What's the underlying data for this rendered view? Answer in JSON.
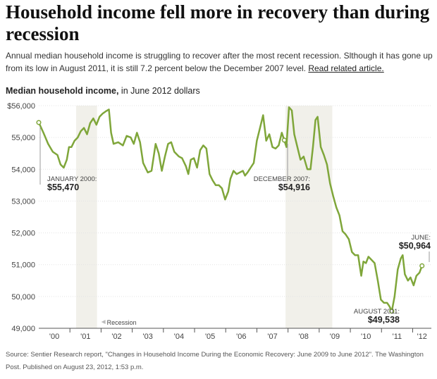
{
  "header": {
    "title": "Household income fell more in recovery than during recession",
    "subtitle": "Annual median household income is struggling to recover after the most recent recession. Slthough it has gone up from its low in August 2011, it is still 7.2 percent below the December 2007 level.",
    "link_text": "Read related article."
  },
  "chart_heading": {
    "bold": "Median household income,",
    "rest": " in June 2012 dollars"
  },
  "source": "Source: Sentier Research report, \"Changes in Household Income During the Economic Recovery: June 2009 to June 2012\". The Washington Post. Published on August 23, 2012, 1:53 p.m.",
  "colors": {
    "line": "#7fa63a",
    "recession": "#f1f0ea",
    "grid": "#e3e3e3",
    "axis": "#555555",
    "text": "#444444"
  },
  "chart_data": {
    "type": "line",
    "title": "Median household income",
    "ylabel": "in June 2012 dollars",
    "xlabel": "",
    "ylim": [
      49000,
      56000
    ],
    "xlim": [
      2000.0,
      2012.6
    ],
    "grid": true,
    "y_ticks": [
      {
        "value": 49000,
        "label": "49,000"
      },
      {
        "value": 50000,
        "label": "50,000"
      },
      {
        "value": 51000,
        "label": "51,000"
      },
      {
        "value": 52000,
        "label": "52,000"
      },
      {
        "value": 53000,
        "label": "53,000"
      },
      {
        "value": 54000,
        "label": "54,000"
      },
      {
        "value": 55000,
        "label": "55,000"
      },
      {
        "value": 56000,
        "label": "$56,000"
      }
    ],
    "x_ticks": [
      {
        "value": 2000.5,
        "label": "'00"
      },
      {
        "value": 2001.5,
        "label": "'01"
      },
      {
        "value": 2002.5,
        "label": "'02"
      },
      {
        "value": 2003.5,
        "label": "'03"
      },
      {
        "value": 2004.5,
        "label": "'04"
      },
      {
        "value": 2005.5,
        "label": "'05"
      },
      {
        "value": 2006.5,
        "label": "'06"
      },
      {
        "value": 2007.5,
        "label": "'07"
      },
      {
        "value": 2008.5,
        "label": "'08"
      },
      {
        "value": 2009.5,
        "label": "'09"
      },
      {
        "value": 2010.5,
        "label": "'10"
      },
      {
        "value": 2011.5,
        "label": "'11"
      },
      {
        "value": 2012.3,
        "label": "'12"
      }
    ],
    "recessions": [
      {
        "start": 2001.2,
        "end": 2001.87
      },
      {
        "start": 2007.92,
        "end": 2009.42
      }
    ],
    "recession_label": "Recession",
    "series": [
      {
        "name": "Median household income",
        "values": [
          [
            2000.0,
            55470
          ],
          [
            2000.15,
            55150
          ],
          [
            2000.3,
            54800
          ],
          [
            2000.45,
            54550
          ],
          [
            2000.6,
            54450
          ],
          [
            2000.7,
            54150
          ],
          [
            2000.8,
            54050
          ],
          [
            2000.9,
            54300
          ],
          [
            2000.97,
            54700
          ],
          [
            2001.05,
            54700
          ],
          [
            2001.15,
            54900
          ],
          [
            2001.25,
            55000
          ],
          [
            2001.35,
            55200
          ],
          [
            2001.45,
            55300
          ],
          [
            2001.55,
            55100
          ],
          [
            2001.65,
            55450
          ],
          [
            2001.75,
            55600
          ],
          [
            2001.85,
            55400
          ],
          [
            2001.95,
            55650
          ],
          [
            2002.05,
            55750
          ],
          [
            2002.15,
            55820
          ],
          [
            2002.25,
            55880
          ],
          [
            2002.32,
            55150
          ],
          [
            2002.4,
            54800
          ],
          [
            2002.55,
            54850
          ],
          [
            2002.7,
            54750
          ],
          [
            2002.82,
            55050
          ],
          [
            2002.95,
            55000
          ],
          [
            2003.05,
            54800
          ],
          [
            2003.15,
            55150
          ],
          [
            2003.25,
            54850
          ],
          [
            2003.35,
            54200
          ],
          [
            2003.5,
            53900
          ],
          [
            2003.62,
            53950
          ],
          [
            2003.75,
            54800
          ],
          [
            2003.85,
            54500
          ],
          [
            2003.95,
            53950
          ],
          [
            2004.05,
            54400
          ],
          [
            2004.15,
            54800
          ],
          [
            2004.25,
            54850
          ],
          [
            2004.35,
            54550
          ],
          [
            2004.5,
            54400
          ],
          [
            2004.6,
            54350
          ],
          [
            2004.72,
            54100
          ],
          [
            2004.8,
            53850
          ],
          [
            2004.88,
            54300
          ],
          [
            2004.98,
            54350
          ],
          [
            2005.08,
            54050
          ],
          [
            2005.18,
            54600
          ],
          [
            2005.28,
            54750
          ],
          [
            2005.38,
            54650
          ],
          [
            2005.48,
            53850
          ],
          [
            2005.58,
            53650
          ],
          [
            2005.68,
            53500
          ],
          [
            2005.78,
            53500
          ],
          [
            2005.88,
            53400
          ],
          [
            2005.98,
            53050
          ],
          [
            2006.08,
            53300
          ],
          [
            2006.15,
            53700
          ],
          [
            2006.25,
            53950
          ],
          [
            2006.35,
            53850
          ],
          [
            2006.45,
            53900
          ],
          [
            2006.55,
            53950
          ],
          [
            2006.62,
            53800
          ],
          [
            2006.7,
            53900
          ],
          [
            2006.8,
            54050
          ],
          [
            2006.9,
            54200
          ],
          [
            2007.0,
            54900
          ],
          [
            2007.1,
            55300
          ],
          [
            2007.2,
            55700
          ],
          [
            2007.3,
            54900
          ],
          [
            2007.4,
            55100
          ],
          [
            2007.5,
            54700
          ],
          [
            2007.6,
            54650
          ],
          [
            2007.7,
            54750
          ],
          [
            2007.8,
            55150
          ],
          [
            2007.88,
            54916
          ],
          [
            2007.95,
            54700
          ],
          [
            2008.03,
            55950
          ],
          [
            2008.12,
            55850
          ],
          [
            2008.2,
            55100
          ],
          [
            2008.3,
            54700
          ],
          [
            2008.4,
            54300
          ],
          [
            2008.5,
            54400
          ],
          [
            2008.62,
            54000
          ],
          [
            2008.72,
            54000
          ],
          [
            2008.8,
            54700
          ],
          [
            2008.88,
            55550
          ],
          [
            2008.95,
            55650
          ],
          [
            2009.05,
            54700
          ],
          [
            2009.15,
            54450
          ],
          [
            2009.25,
            54150
          ],
          [
            2009.35,
            53550
          ],
          [
            2009.45,
            53150
          ],
          [
            2009.55,
            52800
          ],
          [
            2009.65,
            52550
          ],
          [
            2009.75,
            52050
          ],
          [
            2009.85,
            51950
          ],
          [
            2009.95,
            51800
          ],
          [
            2010.05,
            51400
          ],
          [
            2010.15,
            51300
          ],
          [
            2010.25,
            51300
          ],
          [
            2010.35,
            50650
          ],
          [
            2010.42,
            51100
          ],
          [
            2010.5,
            51050
          ],
          [
            2010.58,
            51250
          ],
          [
            2010.68,
            51150
          ],
          [
            2010.78,
            51050
          ],
          [
            2010.88,
            50500
          ],
          [
            2010.98,
            49900
          ],
          [
            2011.08,
            49800
          ],
          [
            2011.18,
            49800
          ],
          [
            2011.25,
            49700
          ],
          [
            2011.33,
            49538
          ],
          [
            2011.42,
            50000
          ],
          [
            2011.52,
            50850
          ],
          [
            2011.62,
            51200
          ],
          [
            2011.68,
            51300
          ],
          [
            2011.75,
            50700
          ],
          [
            2011.85,
            50500
          ],
          [
            2011.93,
            50600
          ],
          [
            2012.03,
            50350
          ],
          [
            2012.12,
            50650
          ],
          [
            2012.22,
            50750
          ],
          [
            2012.3,
            50964
          ]
        ]
      }
    ],
    "annotations": [
      {
        "x": 2000.0,
        "y": 55470,
        "label": "JANUARY 2000:",
        "value": "$55,470"
      },
      {
        "x": 2007.88,
        "y": 54916,
        "label": "DECEMBER 2007:",
        "value": "$54,916"
      },
      {
        "x": 2011.33,
        "y": 49538,
        "label": "AUGUST 2011:",
        "value": "$49,538"
      },
      {
        "x": 2012.3,
        "y": 50964,
        "label": "JUNE:",
        "value": "$50,964"
      }
    ]
  }
}
